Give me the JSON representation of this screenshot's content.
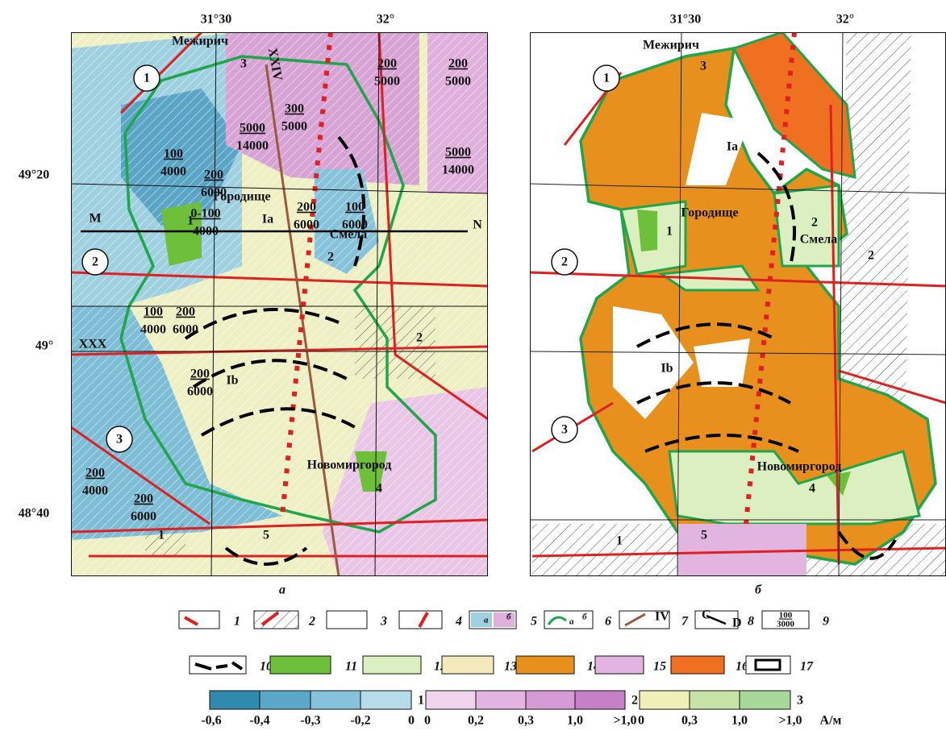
{
  "panel_a": {
    "caption": "а",
    "lon": [
      "31°30",
      "32°"
    ],
    "lat": [
      "49°20",
      "49°",
      "48°40"
    ],
    "places": [
      "Межирич",
      "Городище",
      "Смела",
      "Новомиргород"
    ],
    "zones": [
      "1",
      "2",
      "3"
    ],
    "blocks": [
      "Ia",
      "Ib"
    ],
    "numbers": [
      "3",
      "1",
      "2",
      "4",
      "5",
      "1",
      "2"
    ],
    "profile": [
      "M",
      "N"
    ],
    "faults": [
      "XXX",
      "XXIV"
    ],
    "fractions": [
      [
        "200",
        "5000"
      ],
      [
        "200",
        "5000"
      ],
      [
        "300",
        "5000"
      ],
      [
        "5000",
        "14000"
      ],
      [
        "5000",
        "14000"
      ],
      [
        "100",
        "4000"
      ],
      [
        "200",
        "6000"
      ],
      [
        "200",
        "6000"
      ],
      [
        "100",
        "6000"
      ],
      [
        "0-100",
        "4000"
      ],
      [
        "100",
        "4000"
      ],
      [
        "200",
        "6000"
      ],
      [
        "200",
        "6000"
      ],
      [
        "200",
        "4000"
      ],
      [
        "200",
        "6000"
      ]
    ]
  },
  "panel_b": {
    "caption": "б",
    "lon": [
      "31°30",
      "32°"
    ],
    "places": [
      "Межирич",
      "Городище",
      "Смела",
      "Новомиргород"
    ],
    "zones": [
      "1",
      "2",
      "3"
    ],
    "blocks": [
      "Ia",
      "Ib"
    ],
    "numbers": [
      "3",
      "1",
      "2",
      "4",
      "5",
      "1",
      "2"
    ]
  },
  "legend": {
    "items": [
      "1",
      "2",
      "3",
      "4",
      "5",
      "6",
      "7",
      "8",
      "9",
      "10",
      "11",
      "12",
      "13",
      "14",
      "15",
      "16",
      "17"
    ],
    "sub": [
      "а",
      "б"
    ],
    "fault_symbol": "IV",
    "profile_symbol": [
      "C",
      "D"
    ],
    "fraction_symbol": [
      "100",
      "3000"
    ]
  },
  "scale": {
    "groups": [
      {
        "ticks": [
          "-0,6",
          "-0,4",
          "-0,3",
          "-0,2",
          "0"
        ],
        "name": "1"
      },
      {
        "ticks": [
          "0",
          "0,2",
          "0,3",
          "1,0",
          ">1,0"
        ],
        "name": "2"
      },
      {
        "ticks": [
          "0",
          "0,3",
          "1,0",
          ">1,0"
        ],
        "name": "3"
      }
    ],
    "unit": "А/м"
  }
}
